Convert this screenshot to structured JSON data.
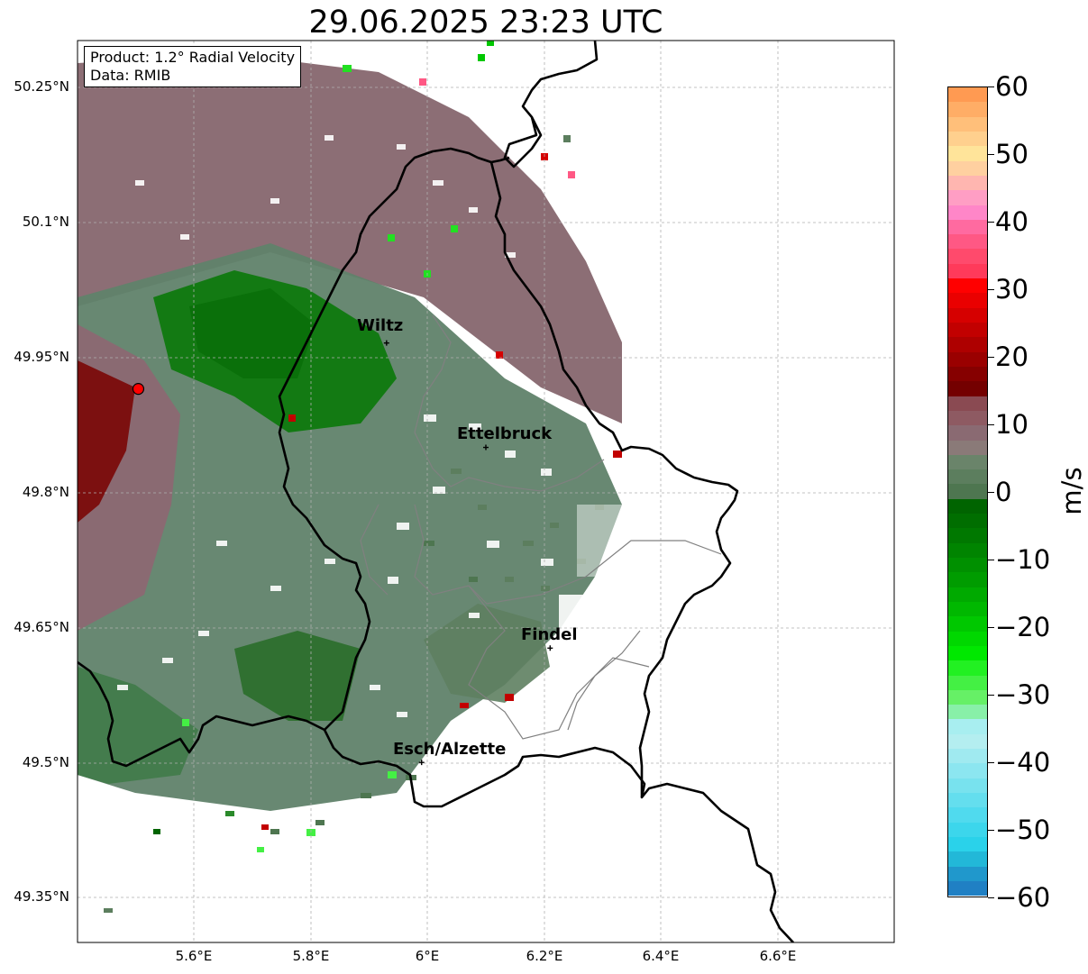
{
  "title": "29.06.2025 23:23 UTC",
  "info": {
    "product": "Product: 1.2° Radial Velocity",
    "data": "Data: RMIB"
  },
  "lat_ticks": [
    "50.25°N",
    "50.1°N",
    "49.95°N",
    "49.8°N",
    "49.65°N",
    "49.5°N",
    "49.35°N"
  ],
  "lon_ticks": [
    "5.6°E",
    "5.8°E",
    "6°E",
    "6.2°E",
    "6.4°E",
    "6.6°E"
  ],
  "cities": [
    {
      "name": "Wiltz",
      "lon": 5.93,
      "lat": 49.966
    },
    {
      "name": "Ettelbruck",
      "lon": 6.1,
      "lat": 49.85
    },
    {
      "name": "Findel",
      "lon": 6.21,
      "lat": 49.627
    },
    {
      "name": "Esch/Alzette",
      "lon": 5.99,
      "lat": 49.5
    }
  ],
  "radar_site": {
    "lon": 5.505,
    "lat": 49.915
  },
  "colorbar": {
    "unit": "m/s",
    "min": -60,
    "max": 60,
    "ticks": [
      "60",
      "50",
      "40",
      "30",
      "20",
      "10",
      "0",
      "−10",
      "−20",
      "−30",
      "−40",
      "−50",
      "−60"
    ],
    "colors_top_to_bottom": [
      "#ff9a52",
      "#ffad66",
      "#ffbf7a",
      "#ffd08e",
      "#ffe49a",
      "#ffd0a0",
      "#ffb6b0",
      "#ff9ec4",
      "#ff86c8",
      "#ff6aa0",
      "#ff5884",
      "#ff4a6c",
      "#ff3a5a",
      "#ff0000",
      "#ea0000",
      "#d60000",
      "#c20000",
      "#ae0000",
      "#9a0000",
      "#860000",
      "#740000",
      "#8a4a52",
      "#8e5a62",
      "#8a6a72",
      "#8a7a78",
      "#6a846a",
      "#5c7e5e",
      "#4e7650",
      "#006400",
      "#006e00",
      "#007800",
      "#008400",
      "#009000",
      "#009c00",
      "#00aa00",
      "#00b800",
      "#00c800",
      "#00d800",
      "#00e800",
      "#22f022",
      "#44f044",
      "#66f066",
      "#88f0a8",
      "#a8eef0",
      "#b4eef0",
      "#a0eaf0",
      "#8ce6f0",
      "#78e2ee",
      "#64deee",
      "#50daee",
      "#3cd6ec",
      "#2ad2ea",
      "#22b8d8",
      "#2098cc",
      "#2080c4"
    ]
  }
}
